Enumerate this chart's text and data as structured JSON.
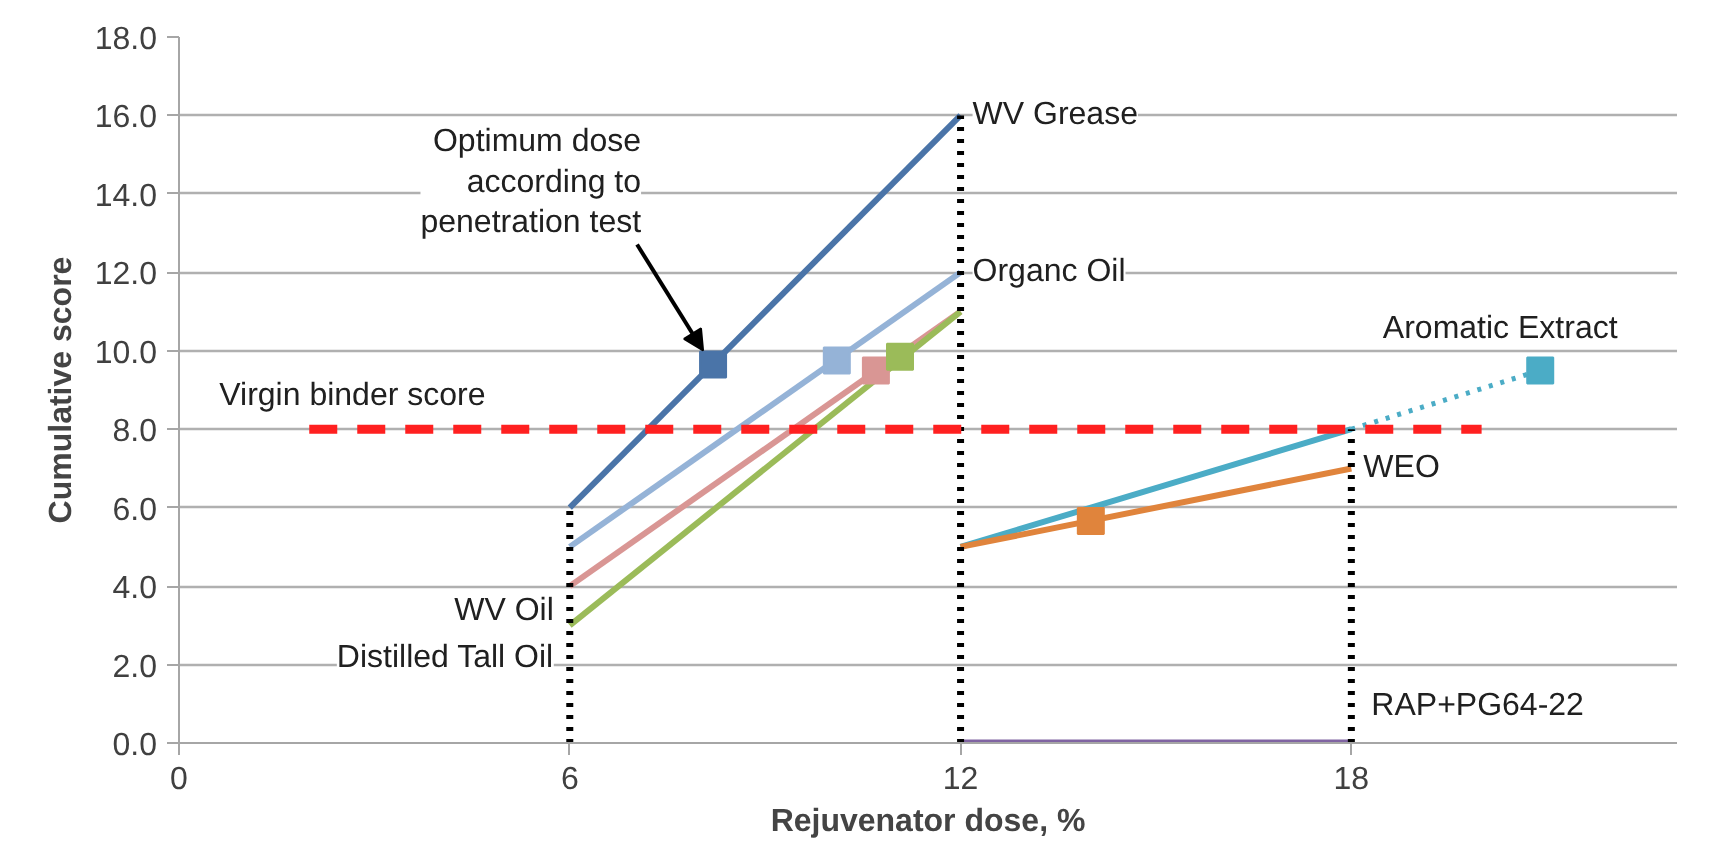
{
  "chart_data": {
    "type": "line",
    "xlabel": "Rejuvenator dose, %",
    "ylabel": "Cumulative score",
    "xlim": [
      0,
      23
    ],
    "ylim": [
      0,
      18
    ],
    "xticks": [
      0,
      6,
      12,
      18
    ],
    "yticks": [
      {
        "value": 0,
        "label": "0.0"
      },
      {
        "value": 2,
        "label": "2.0"
      },
      {
        "value": 4,
        "label": "4.0"
      },
      {
        "value": 6,
        "label": "6.0"
      },
      {
        "value": 8,
        "label": "8.0"
      },
      {
        "value": 10,
        "label": "10.0"
      },
      {
        "value": 12,
        "label": "12.0"
      },
      {
        "value": 14,
        "label": "14.0"
      },
      {
        "value": 16,
        "label": "16.0"
      },
      {
        "value": 18,
        "label": "18.0"
      }
    ],
    "grid": "y",
    "annotations": [
      {
        "text": "Optimum dose\naccording to\npenetration test",
        "x": 8.2,
        "y": 9.65
      }
    ],
    "series": [
      {
        "name": "WV Grease",
        "color": "#4a74a8",
        "x": [
          6,
          12
        ],
        "values": [
          6,
          16
        ]
      },
      {
        "name": "Organc Oil",
        "color": "#95b3d7",
        "x": [
          6,
          12
        ],
        "values": [
          5,
          12
        ]
      },
      {
        "name": "WV Oil",
        "color": "#d99694",
        "x": [
          6,
          12
        ],
        "values": [
          4,
          11
        ]
      },
      {
        "name": "Distilled Tall Oil",
        "color": "#9bbb59",
        "x": [
          6,
          12
        ],
        "values": [
          3,
          11
        ]
      },
      {
        "color": "#4bacc6",
        "x": [
          12,
          18
        ],
        "values": [
          5,
          8
        ]
      },
      {
        "name": "Aromatic Extract",
        "color": "#4bacc6",
        "x": [
          18,
          20.9
        ],
        "values": [
          8,
          9.5
        ],
        "line_style": "dotted"
      },
      {
        "name": "WEO",
        "color": "#e0843c",
        "x": [
          12,
          18
        ],
        "values": [
          5,
          7
        ]
      },
      {
        "name": "RAP+PG64-22",
        "color": "#8064a2",
        "x": [
          12,
          18
        ],
        "values": [
          0,
          0
        ]
      },
      {
        "color": "#000000",
        "x": [
          6,
          6
        ],
        "values": [
          0,
          6
        ],
        "line_style": "dotted"
      },
      {
        "color": "#000000",
        "x": [
          12,
          12
        ],
        "values": [
          0,
          16
        ],
        "line_style": "dotted"
      },
      {
        "color": "#000000",
        "x": [
          18,
          18
        ],
        "values": [
          0,
          8
        ],
        "line_style": "dotted"
      },
      {
        "name": "Virgin binder score",
        "color": "#ff2020",
        "x": [
          2,
          20
        ],
        "values": [
          8,
          8
        ],
        "line_style": "dashed"
      },
      {
        "type": "scatter",
        "marker": "square",
        "color": "#4a74a8",
        "x": [
          8.2
        ],
        "values": [
          9.65
        ]
      },
      {
        "type": "scatter",
        "marker": "square",
        "color": "#95b3d7",
        "x": [
          10.1
        ],
        "values": [
          9.75
        ]
      },
      {
        "type": "scatter",
        "marker": "square",
        "color": "#d99694",
        "x": [
          10.7
        ],
        "values": [
          9.5
        ]
      },
      {
        "type": "scatter",
        "marker": "square",
        "color": "#9bbb59",
        "x": [
          11.07
        ],
        "values": [
          9.85
        ]
      },
      {
        "type": "scatter",
        "marker": "square",
        "color": "#4bacc6",
        "x": [
          20.9
        ],
        "values": [
          9.5
        ]
      },
      {
        "type": "scatter",
        "marker": "square",
        "color": "#e0843c",
        "x": [
          14
        ],
        "values": [
          5.66
        ]
      }
    ]
  }
}
